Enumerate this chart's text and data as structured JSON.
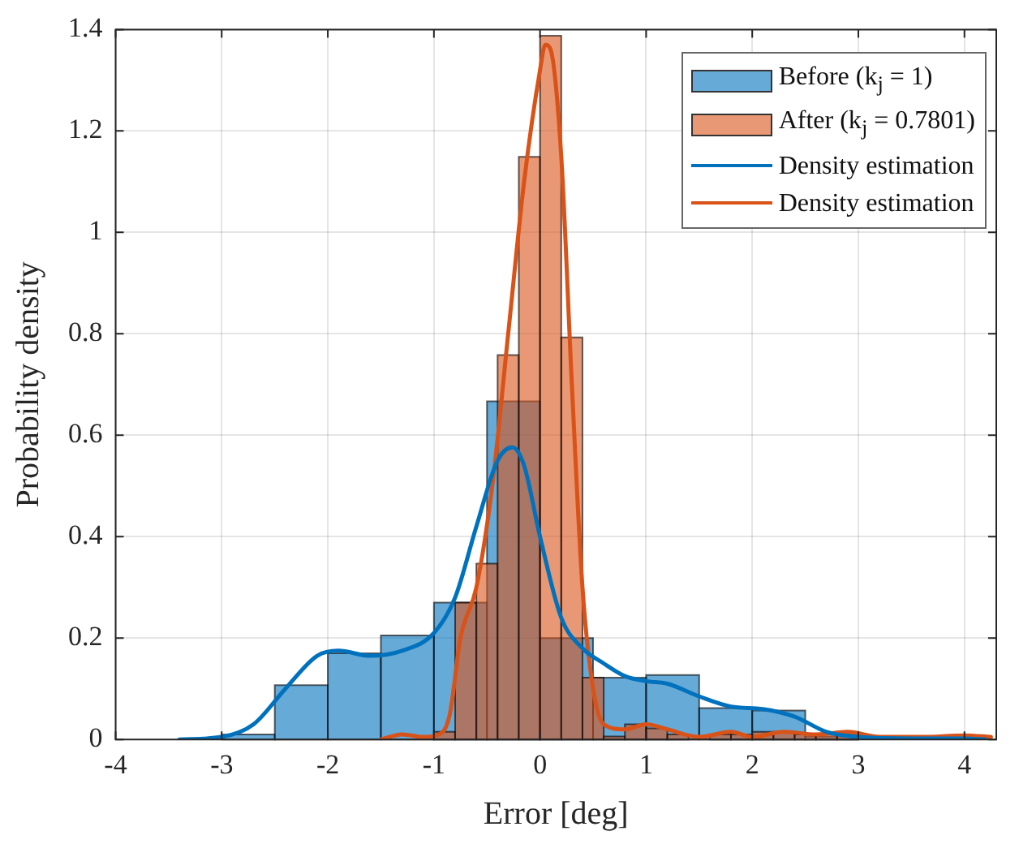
{
  "chart_data": {
    "type": "histogram",
    "xlabel": "Error [deg]",
    "ylabel": "Probability density",
    "xlim": [
      -4,
      4.3
    ],
    "xticks": [
      -4,
      -3,
      -2,
      -1,
      0,
      1,
      2,
      3,
      4
    ],
    "ylim": [
      0,
      1.4
    ],
    "yticks": [
      0,
      0.2,
      0.4,
      0.6,
      0.8,
      1,
      1.2,
      1.4
    ],
    "grid": true,
    "legend": "top right",
    "series": [
      {
        "name": "Before (k$_{j}$ = 1)",
        "color": "#0072bd",
        "bins": [
          -3,
          -2.5,
          -2,
          -1.5,
          -1,
          -0.5,
          0,
          0.5,
          1,
          1.5,
          2,
          2.5,
          3
        ],
        "values": [
          0.01,
          0.107,
          0.17,
          0.205,
          0.27,
          0.667,
          0.2,
          0.122,
          0.127,
          0.062,
          0.057,
          0.006
        ]
      },
      {
        "name": "After (k$_{j}$ = 0.7801)",
        "color": "#d95319",
        "bins": [
          -1,
          -0.8,
          -0.6,
          -0.4,
          -0.2,
          0,
          0.2,
          0.4,
          0.6,
          0.8,
          1,
          1.2,
          1.4,
          1.6,
          1.8,
          2,
          2.2,
          2.4,
          2.6,
          2.8,
          3
        ],
        "values": [
          0.015,
          0.27,
          0.347,
          0.758,
          1.149,
          1.388,
          0.793,
          0.122,
          0.006,
          0.03,
          0.022,
          0.01,
          null,
          0.01,
          0.01,
          0.015,
          0.015,
          0.01,
          0.01,
          0.01
        ]
      },
      {
        "type": "line",
        "name": "Density estimation",
        "color": "#0072bd",
        "x": [
          -3.4,
          -3,
          -2.7,
          -2.4,
          -2.1,
          -1.9,
          -1.6,
          -1.3,
          -1,
          -0.8,
          -0.6,
          -0.4,
          -0.26,
          -0.15,
          0,
          0.2,
          0.4,
          0.6,
          0.8,
          1,
          1.2,
          1.5,
          1.8,
          2.1,
          2.4,
          2.7,
          3,
          3.5,
          4,
          4.2
        ],
        "values": [
          0,
          0.005,
          0.03,
          0.1,
          0.165,
          0.175,
          0.165,
          0.175,
          0.21,
          0.28,
          0.42,
          0.55,
          0.576,
          0.54,
          0.4,
          0.24,
          0.18,
          0.15,
          0.125,
          0.115,
          0.11,
          0.085,
          0.065,
          0.06,
          0.045,
          0.015,
          0.005,
          0.002,
          0.002,
          0
        ]
      },
      {
        "type": "line",
        "name": "Density estimation",
        "color": "#d95319",
        "x": [
          -1.5,
          -1.3,
          -1.1,
          -0.95,
          -0.85,
          -0.75,
          -0.6,
          -0.45,
          -0.3,
          -0.15,
          0,
          0.05,
          0.1,
          0.2,
          0.3,
          0.4,
          0.5,
          0.6,
          0.8,
          1,
          1.2,
          1.5,
          1.8,
          2,
          2.3,
          2.6,
          2.9,
          3.2,
          3.6,
          4,
          4.25
        ],
        "values": [
          0,
          0.01,
          0.005,
          0.01,
          0.05,
          0.2,
          0.3,
          0.5,
          0.8,
          1.1,
          1.32,
          1.37,
          1.36,
          1.15,
          0.7,
          0.3,
          0.1,
          0.03,
          0.02,
          0.03,
          0.02,
          0.005,
          0.015,
          0.005,
          0.015,
          0.01,
          0.015,
          0.005,
          0.005,
          0.008,
          0.005
        ]
      }
    ]
  }
}
